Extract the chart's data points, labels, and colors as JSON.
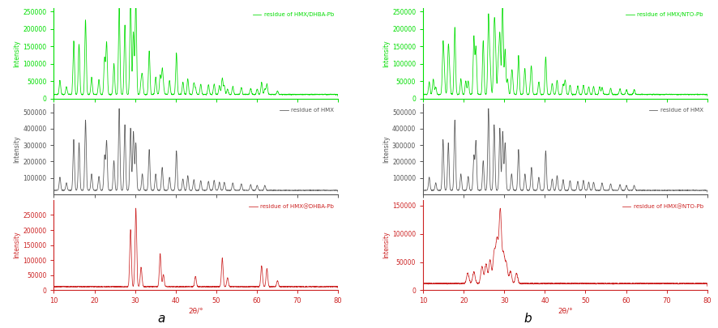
{
  "panel_a_label": "a",
  "panel_b_label": "b",
  "xlabel": "2θ/°",
  "ylabel": "Intensity",
  "xlim": [
    10,
    80
  ],
  "color_green": "#00dd00",
  "color_black": "#555555",
  "color_red": "#cc2222",
  "legend_dhba_mix": "residue of HMX/DHBA-Pb",
  "legend_hmx_a": "residue of HMX",
  "legend_dhba_coat": "residue of HMX@DHBA-Pb",
  "legend_nto_mix": "residue of HMX/NTO-Pb",
  "legend_hmx_b": "residue of HMX",
  "legend_nto_coat": "residue of HMX@NTO-Pb",
  "hmx_peaks": [
    11.5,
    13.1,
    14.9,
    16.2,
    17.8,
    19.3,
    21.1,
    22.5,
    23.0,
    24.8,
    26.1,
    27.5,
    28.9,
    29.6,
    30.2,
    31.8,
    33.5,
    35.1,
    36.7,
    38.5,
    40.2,
    41.8,
    43.0,
    44.5,
    46.2,
    48.1,
    49.5,
    50.8,
    52.0,
    54.1,
    56.2,
    58.5,
    60.1,
    62.0
  ],
  "hmx_heights": [
    80000,
    45000,
    310000,
    290000,
    430000,
    100000,
    85000,
    210000,
    300000,
    180000,
    500000,
    400000,
    380000,
    360000,
    290000,
    100000,
    250000,
    100000,
    140000,
    80000,
    240000,
    70000,
    90000,
    65000,
    60000,
    55000,
    60000,
    50000,
    50000,
    45000,
    40000,
    35000,
    30000,
    30000
  ],
  "dhba_pb_peaks": [
    28.9,
    30.2,
    31.5,
    36.2,
    37.0,
    44.9,
    51.5,
    52.8,
    61.2,
    62.5,
    65.1
  ],
  "dhba_pb_heights": [
    190000,
    260000,
    65000,
    110000,
    40000,
    35000,
    95000,
    30000,
    70000,
    60000,
    20000
  ],
  "nto_pb_peaks": [
    12.5,
    15.2,
    16.5,
    20.5,
    22.5,
    24.8,
    26.5,
    27.8,
    28.5,
    29.5,
    30.8,
    32.0,
    35.0,
    36.5,
    45.0,
    53.5
  ],
  "nto_pb_heights": [
    80000,
    100000,
    95000,
    70000,
    130000,
    135000,
    160000,
    225000,
    170000,
    200000,
    80000,
    70000,
    60000,
    55000,
    75000,
    40000
  ],
  "nto_coat_peaks": [
    21.0,
    22.5,
    24.5,
    25.5,
    26.5,
    27.5,
    28.2,
    29.0,
    29.8,
    30.5,
    31.5,
    33.0
  ],
  "nto_coat_heights": [
    18000,
    20000,
    30000,
    35000,
    42000,
    55000,
    75000,
    130000,
    50000,
    35000,
    22000,
    18000
  ]
}
